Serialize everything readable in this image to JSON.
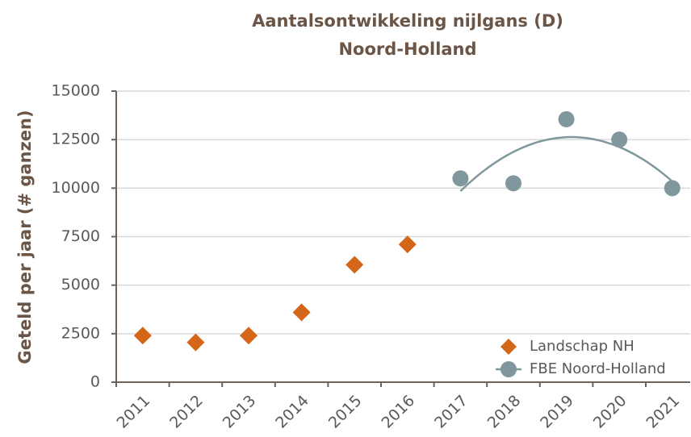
{
  "chart_data": {
    "type": "scatter",
    "title": [
      "Aantalsontwikkeling nijlgans (D)",
      "Noord-Holland"
    ],
    "ylabel": "Geteld per jaar (# ganzen)",
    "categories": [
      "2011",
      "2012",
      "2013",
      "2014",
      "2015",
      "2016",
      "2017",
      "2018",
      "2019",
      "2020",
      "2021"
    ],
    "series": [
      {
        "name": "Landschap NH",
        "color": "#d4661a",
        "marker": "diamond",
        "values": [
          2400,
          2050,
          2400,
          3600,
          6050,
          7100,
          null,
          null,
          null,
          null,
          null
        ]
      },
      {
        "name": "FBE Noord-Holland",
        "color": "#7f979d",
        "marker": "circle",
        "trendline": "polynomial-2",
        "values": [
          null,
          null,
          null,
          null,
          null,
          null,
          10500,
          10250,
          13550,
          12500,
          10000
        ]
      }
    ],
    "ylim": [
      0,
      15000
    ],
    "yticks": [
      0,
      2500,
      5000,
      7500,
      10000,
      12500,
      15000
    ],
    "grid": true,
    "legend": "lower right"
  }
}
